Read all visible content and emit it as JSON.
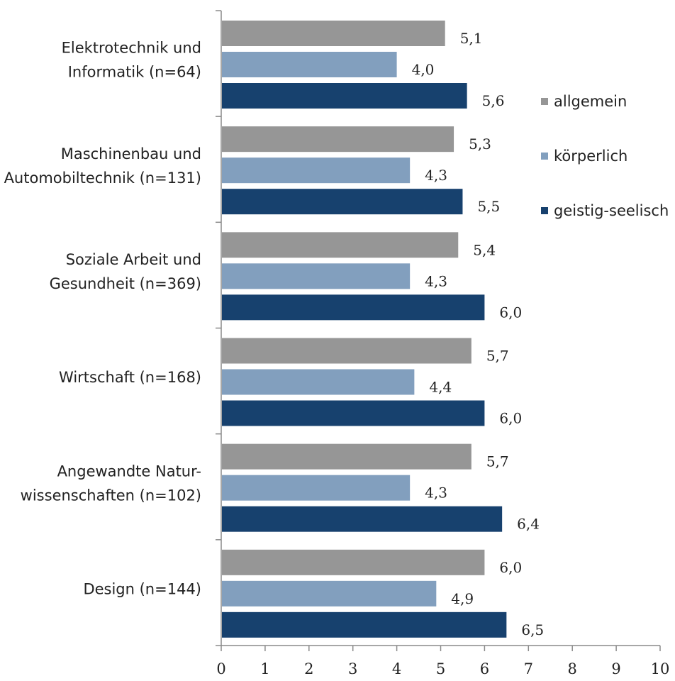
{
  "chart_data": {
    "type": "bar",
    "orientation": "horizontal",
    "categories": [
      [
        "Elektrotechnik und",
        "Informatik (n=64)"
      ],
      [
        "Maschinenbau und",
        "Automobiltechnik (n=131)"
      ],
      [
        "Soziale Arbeit und",
        "Gesundheit (n=369)"
      ],
      [
        "Wirtschaft (n=168)"
      ],
      [
        "Angewandte Natur-",
        "wissenschaften (n=102)"
      ],
      [
        "Design (n=144)"
      ]
    ],
    "series": [
      {
        "name": "allgemein",
        "color": "#969696",
        "values": [
          5.1,
          5.3,
          5.4,
          5.7,
          5.7,
          6.0
        ],
        "labels": [
          "5,1",
          "5,3",
          "5,4",
          "5,7",
          "5,7",
          "6,0"
        ]
      },
      {
        "name": "körperlich",
        "color": "#829fbe",
        "values": [
          4.0,
          4.3,
          4.3,
          4.4,
          4.3,
          4.9
        ],
        "labels": [
          "4,0",
          "4,3",
          "4,3",
          "4,4",
          "4,3",
          "4,9"
        ]
      },
      {
        "name": "geistig-seelisch",
        "color": "#17416e",
        "values": [
          5.6,
          5.5,
          6.0,
          6.0,
          6.4,
          6.5
        ],
        "labels": [
          "5,6",
          "5,5",
          "6,0",
          "6,0",
          "6,4",
          "6,5"
        ]
      }
    ],
    "xlim": [
      0,
      10
    ],
    "xticks": [
      "0",
      "1",
      "2",
      "3",
      "4",
      "5",
      "6",
      "7",
      "8",
      "9",
      "10"
    ],
    "legend_position": "right",
    "grid": false,
    "title": "",
    "xlabel": "",
    "ylabel": ""
  }
}
